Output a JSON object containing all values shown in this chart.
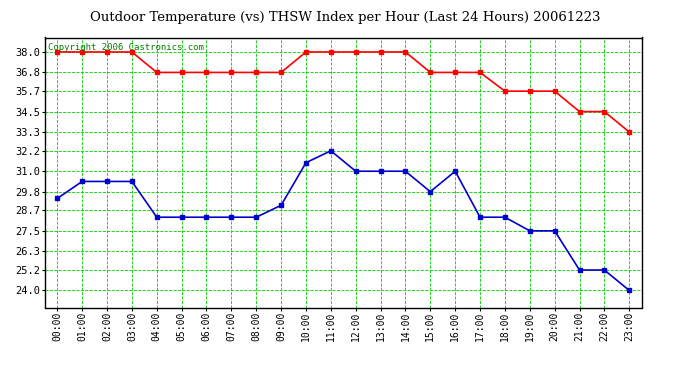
{
  "title": "Outdoor Temperature (vs) THSW Index per Hour (Last 24 Hours) 20061223",
  "copyright": "Copyright 2006 Castronics.com",
  "hours": [
    "00:00",
    "01:00",
    "02:00",
    "03:00",
    "04:00",
    "05:00",
    "06:00",
    "07:00",
    "08:00",
    "09:00",
    "10:00",
    "11:00",
    "12:00",
    "13:00",
    "14:00",
    "15:00",
    "16:00",
    "17:00",
    "18:00",
    "19:00",
    "20:00",
    "21:00",
    "22:00",
    "23:00"
  ],
  "red_data": [
    38.0,
    38.0,
    38.0,
    38.0,
    36.8,
    36.8,
    36.8,
    36.8,
    36.8,
    36.8,
    38.0,
    38.0,
    38.0,
    38.0,
    38.0,
    36.8,
    36.8,
    36.8,
    35.7,
    35.7,
    35.7,
    34.5,
    34.5,
    33.3
  ],
  "blue_data": [
    29.4,
    30.4,
    30.4,
    30.4,
    28.3,
    28.3,
    28.3,
    28.3,
    28.3,
    29.0,
    31.5,
    32.2,
    31.0,
    31.0,
    31.0,
    29.8,
    31.0,
    28.3,
    28.3,
    27.5,
    27.5,
    25.2,
    25.2,
    24.0
  ],
  "red_color": "#ff0000",
  "blue_color": "#0000cc",
  "bg_color": "#ffffff",
  "plot_bg_color": "#ffffff",
  "grid_color": "#00cc00",
  "border_color": "#000000",
  "title_color": "#000000",
  "copyright_color": "#008000",
  "ylim_min": 23.0,
  "ylim_max": 38.85,
  "yticks": [
    24.0,
    25.2,
    26.3,
    27.5,
    28.7,
    29.8,
    31.0,
    32.2,
    33.3,
    34.5,
    35.7,
    36.8,
    38.0
  ],
  "marker": "s",
  "marker_size": 3,
  "line_width": 1.2,
  "title_fontsize": 9.5,
  "copyright_fontsize": 6.5,
  "tick_fontsize": 7,
  "ytick_fontsize": 7.5
}
